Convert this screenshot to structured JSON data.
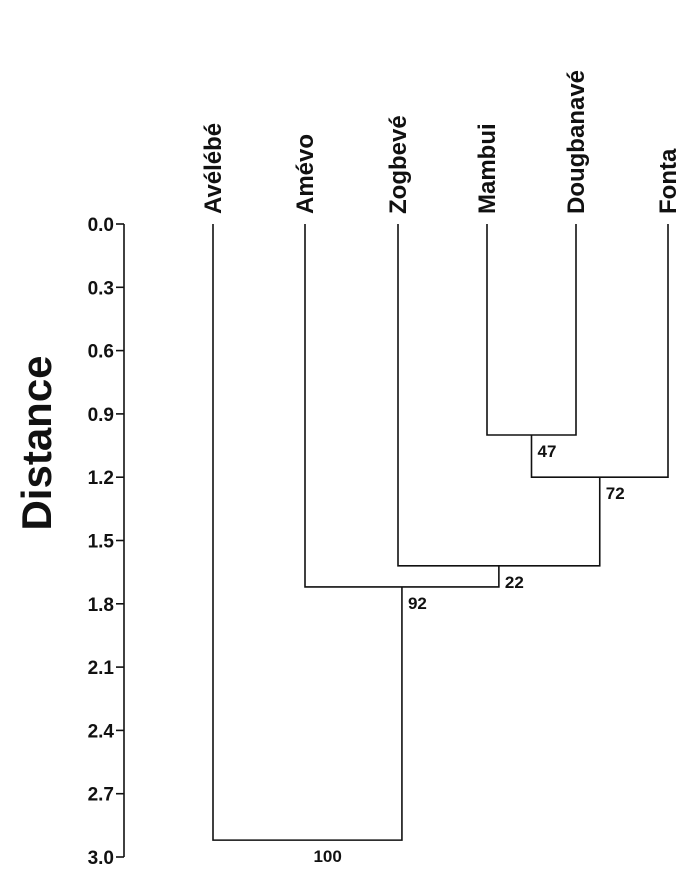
{
  "chart_data": {
    "type": "dendrogram",
    "ylabel": "Distance",
    "ylim": [
      0.0,
      3.0
    ],
    "yticks": [
      "0.0",
      "0.3",
      "0.6",
      "0.9",
      "1.2",
      "1.5",
      "1.8",
      "2.1",
      "2.4",
      "2.7",
      "3.0"
    ],
    "y_inverted": true,
    "leaves": [
      "Avélébé",
      "Amévo",
      "Zogbevé",
      "Mambui",
      "Dougbanavé",
      "Fonta"
    ],
    "merges": [
      {
        "id": "m1",
        "left": "Mambui",
        "right": "Dougbanavé",
        "height": 1.0,
        "bootstrap": "47"
      },
      {
        "id": "m2",
        "left": "m1",
        "right": "Fonta",
        "height": 1.2,
        "bootstrap": "72"
      },
      {
        "id": "m3",
        "left": "Zogbevé",
        "right": "m2",
        "height": 1.62,
        "bootstrap": "22"
      },
      {
        "id": "m4",
        "left": "Amévo",
        "right": "m3",
        "height": 1.72,
        "bootstrap": "92"
      },
      {
        "id": "m5",
        "left": "Avélébé",
        "right": "m4",
        "height": 2.92,
        "bootstrap": "100"
      }
    ]
  }
}
